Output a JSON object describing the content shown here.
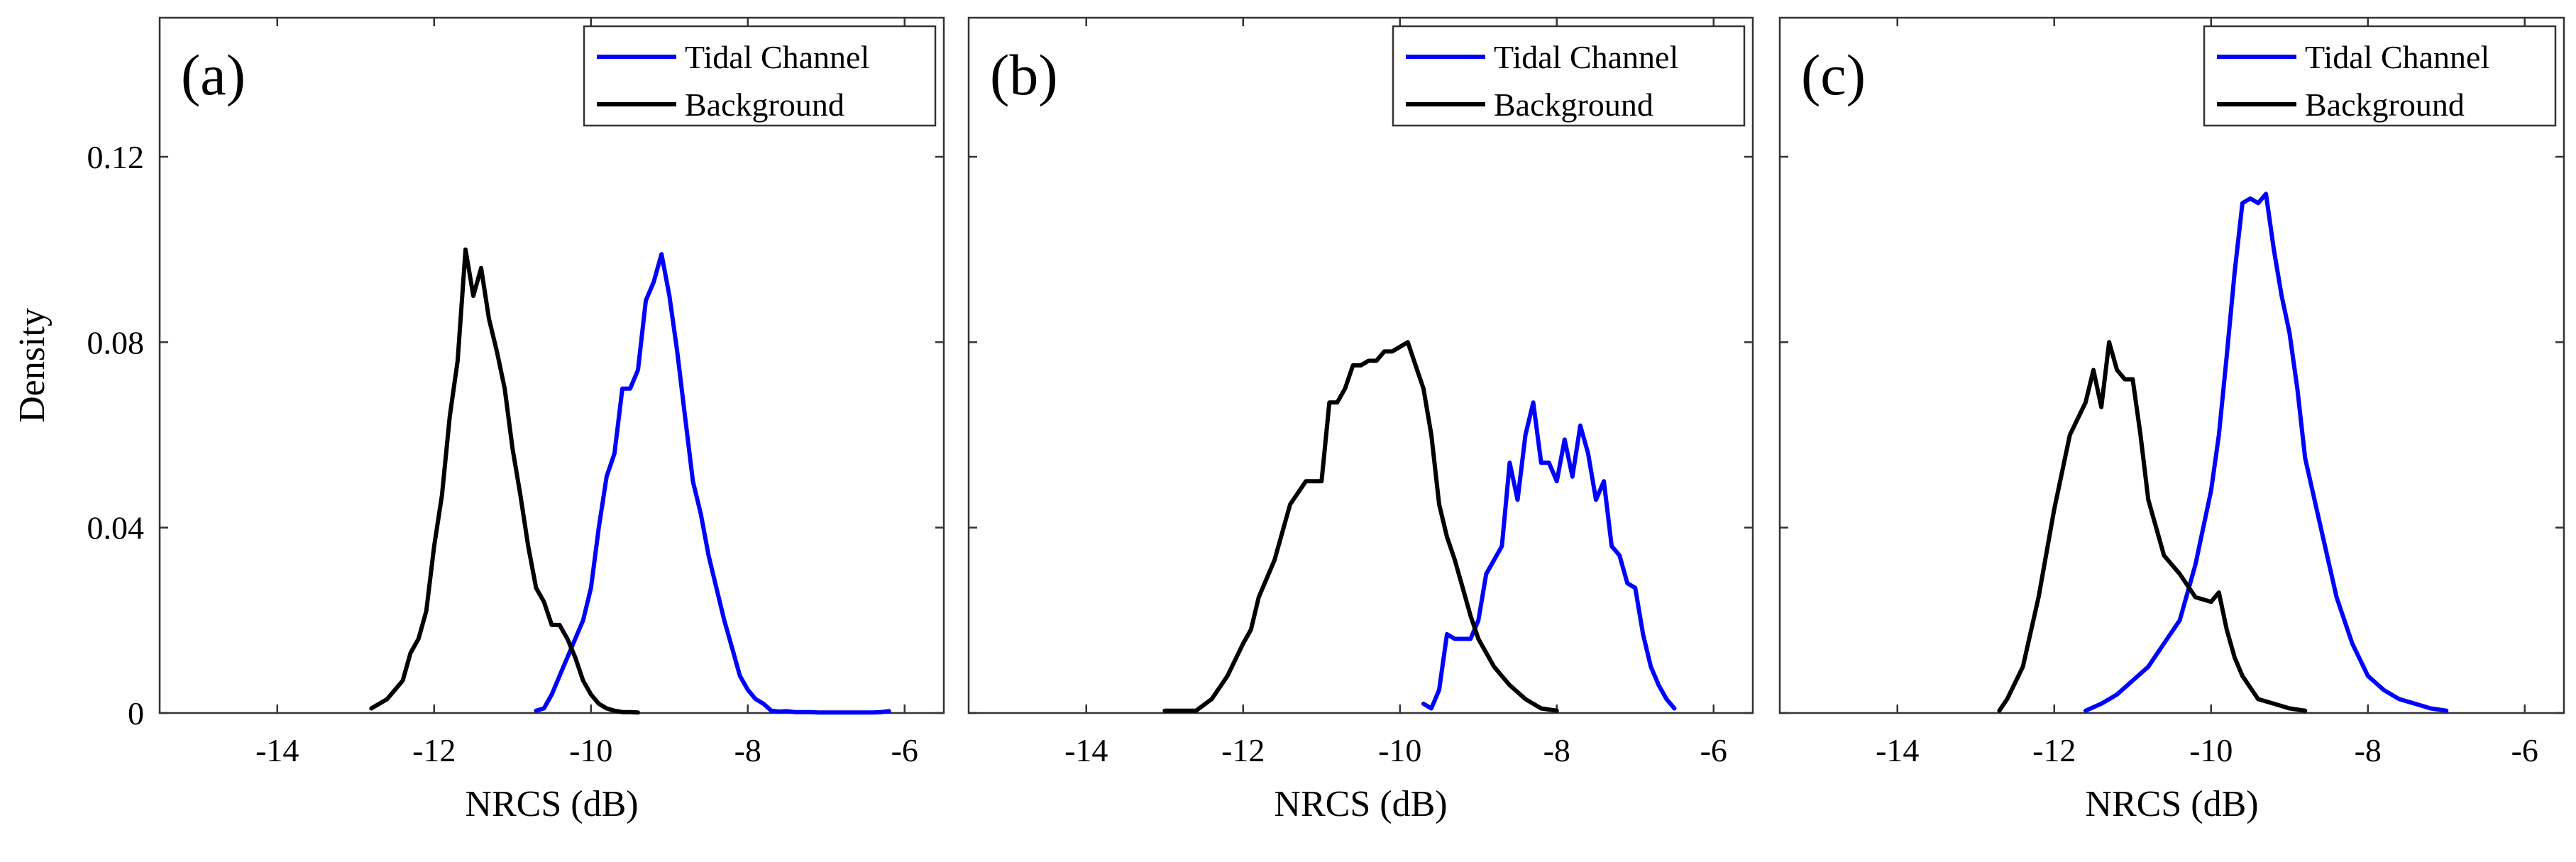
{
  "chart_data": [
    {
      "type": "line",
      "panel_label": "(a)",
      "xlabel": "NRCS (dB)",
      "ylabel": "Density",
      "xlim": [
        -15.5,
        -5.5
      ],
      "ylim": [
        0,
        0.15
      ],
      "xticks": [
        -14,
        -12,
        -10,
        -8,
        -6
      ],
      "yticks": [
        0,
        0.04,
        0.08,
        0.12
      ],
      "xtick_labels": [
        "-14",
        "-12",
        "-10",
        "-8",
        "-6"
      ],
      "ytick_labels": [
        "0",
        "0.04",
        "0.08",
        "0.12"
      ],
      "legend": {
        "position": "top-right",
        "entries": [
          "Tidal Channel",
          "Background"
        ]
      },
      "series": [
        {
          "name": "Tidal Channel",
          "color": "#0000ff",
          "x": [
            -10.7,
            -10.6,
            -10.5,
            -10.4,
            -10.3,
            -10.2,
            -10.1,
            -10.0,
            -9.9,
            -9.8,
            -9.7,
            -9.6,
            -9.5,
            -9.4,
            -9.3,
            -9.2,
            -9.1,
            -9.0,
            -8.9,
            -8.8,
            -8.7,
            -8.6,
            -8.5,
            -8.4,
            -8.3,
            -8.2,
            -8.1,
            -8.0,
            -7.9,
            -7.8,
            -7.7,
            -7.6,
            -7.5,
            -7.4,
            -7.3,
            -7.2,
            -7.1,
            -7.0,
            -6.9,
            -6.8,
            -6.7,
            -6.6,
            -6.5,
            -6.4,
            -6.3,
            -6.2
          ],
          "values": [
            0.0005,
            0.001,
            0.004,
            0.008,
            0.012,
            0.016,
            0.02,
            0.027,
            0.04,
            0.051,
            0.056,
            0.07,
            0.07,
            0.074,
            0.089,
            0.093,
            0.099,
            0.09,
            0.078,
            0.064,
            0.05,
            0.043,
            0.034,
            0.027,
            0.02,
            0.014,
            0.008,
            0.005,
            0.003,
            0.002,
            0.0005,
            0.0003,
            0.0004,
            0.0002,
            0.0002,
            0.0002,
            0.0001,
            0.0001,
            0.0001,
            0.0001,
            0.0001,
            0.0001,
            0.0001,
            0.0001,
            0.0002,
            0.0004
          ]
        },
        {
          "name": "Background",
          "color": "#000000",
          "x": [
            -12.8,
            -12.6,
            -12.4,
            -12.3,
            -12.2,
            -12.1,
            -12.0,
            -11.9,
            -11.8,
            -11.7,
            -11.6,
            -11.5,
            -11.4,
            -11.3,
            -11.2,
            -11.1,
            -11.0,
            -10.9,
            -10.8,
            -10.7,
            -10.6,
            -10.5,
            -10.4,
            -10.3,
            -10.2,
            -10.1,
            -10.0,
            -9.9,
            -9.8,
            -9.7,
            -9.6,
            -9.5,
            -9.4
          ],
          "values": [
            0.001,
            0.003,
            0.007,
            0.013,
            0.016,
            0.022,
            0.036,
            0.047,
            0.064,
            0.076,
            0.1,
            0.09,
            0.096,
            0.085,
            0.078,
            0.07,
            0.057,
            0.047,
            0.036,
            0.027,
            0.024,
            0.019,
            0.019,
            0.016,
            0.012,
            0.007,
            0.004,
            0.002,
            0.001,
            0.0005,
            0.0002,
            0.0002,
            0.0001
          ]
        }
      ]
    },
    {
      "type": "line",
      "panel_label": "(b)",
      "xlabel": "NRCS (dB)",
      "ylabel": "",
      "xlim": [
        -15.5,
        -5.5
      ],
      "ylim": [
        0,
        0.15
      ],
      "xticks": [
        -14,
        -12,
        -10,
        -8,
        -6
      ],
      "xtick_labels": [
        "-14",
        "-12",
        "-10",
        "-8",
        "-6"
      ],
      "legend": {
        "position": "top-right",
        "entries": [
          "Tidal Channel",
          "Background"
        ]
      },
      "series": [
        {
          "name": "Tidal Channel",
          "color": "#0000ff",
          "x": [
            -9.7,
            -9.6,
            -9.5,
            -9.4,
            -9.3,
            -9.2,
            -9.1,
            -9.0,
            -8.9,
            -8.8,
            -8.7,
            -8.6,
            -8.5,
            -8.4,
            -8.3,
            -8.2,
            -8.1,
            -8.0,
            -7.9,
            -7.8,
            -7.7,
            -7.6,
            -7.5,
            -7.4,
            -7.3,
            -7.2,
            -7.1,
            -7.0,
            -6.9,
            -6.8,
            -6.7,
            -6.6,
            -6.5
          ],
          "values": [
            0.002,
            0.001,
            0.005,
            0.017,
            0.016,
            0.016,
            0.016,
            0.02,
            0.03,
            0.033,
            0.036,
            0.054,
            0.046,
            0.06,
            0.067,
            0.054,
            0.054,
            0.05,
            0.059,
            0.051,
            0.062,
            0.056,
            0.046,
            0.05,
            0.036,
            0.034,
            0.028,
            0.027,
            0.017,
            0.01,
            0.006,
            0.003,
            0.001
          ]
        },
        {
          "name": "Background",
          "color": "#000000",
          "x": [
            -13.0,
            -12.8,
            -12.6,
            -12.4,
            -12.2,
            -12.0,
            -11.9,
            -11.8,
            -11.6,
            -11.4,
            -11.2,
            -11.0,
            -10.9,
            -10.8,
            -10.7,
            -10.6,
            -10.5,
            -10.4,
            -10.3,
            -10.2,
            -10.1,
            -10.0,
            -9.9,
            -9.8,
            -9.7,
            -9.6,
            -9.5,
            -9.4,
            -9.3,
            -9.2,
            -9.1,
            -9.0,
            -8.8,
            -8.6,
            -8.4,
            -8.2,
            -8.0
          ],
          "values": [
            0.0005,
            0.0005,
            0.0005,
            0.003,
            0.008,
            0.015,
            0.018,
            0.025,
            0.033,
            0.045,
            0.05,
            0.05,
            0.067,
            0.067,
            0.07,
            0.075,
            0.075,
            0.076,
            0.076,
            0.078,
            0.078,
            0.079,
            0.08,
            0.075,
            0.07,
            0.06,
            0.045,
            0.038,
            0.033,
            0.027,
            0.021,
            0.016,
            0.01,
            0.006,
            0.003,
            0.001,
            0.0005
          ]
        }
      ]
    },
    {
      "type": "line",
      "panel_label": "(c)",
      "xlabel": "NRCS (dB)",
      "ylabel": "",
      "xlim": [
        -15.5,
        -5.5
      ],
      "ylim": [
        0,
        0.15
      ],
      "xticks": [
        -14,
        -12,
        -10,
        -8,
        -6
      ],
      "xtick_labels": [
        "-14",
        "-12",
        "-10",
        "-8",
        "-6"
      ],
      "legend": {
        "position": "top-right",
        "entries": [
          "Tidal Channel",
          "Background"
        ]
      },
      "series": [
        {
          "name": "Tidal Channel",
          "color": "#0000ff",
          "x": [
            -11.6,
            -11.4,
            -11.2,
            -11.0,
            -10.8,
            -10.6,
            -10.4,
            -10.2,
            -10.0,
            -9.9,
            -9.8,
            -9.7,
            -9.6,
            -9.5,
            -9.4,
            -9.3,
            -9.2,
            -9.1,
            -9.0,
            -8.9,
            -8.8,
            -8.6,
            -8.4,
            -8.2,
            -8.0,
            -7.8,
            -7.6,
            -7.4,
            -7.2,
            -7.0
          ],
          "values": [
            0.0005,
            0.002,
            0.004,
            0.007,
            0.01,
            0.015,
            0.02,
            0.032,
            0.048,
            0.06,
            0.077,
            0.095,
            0.11,
            0.111,
            0.11,
            0.112,
            0.1,
            0.09,
            0.082,
            0.07,
            0.055,
            0.04,
            0.025,
            0.015,
            0.008,
            0.005,
            0.003,
            0.002,
            0.001,
            0.0005
          ]
        },
        {
          "name": "Background",
          "color": "#000000",
          "x": [
            -12.7,
            -12.6,
            -12.4,
            -12.2,
            -12.0,
            -11.8,
            -11.6,
            -11.5,
            -11.4,
            -11.3,
            -11.2,
            -11.1,
            -11.0,
            -10.9,
            -10.8,
            -10.7,
            -10.6,
            -10.4,
            -10.2,
            -10.0,
            -9.9,
            -9.8,
            -9.7,
            -9.6,
            -9.4,
            -9.2,
            -9.0,
            -8.8
          ],
          "values": [
            0.0005,
            0.003,
            0.01,
            0.025,
            0.044,
            0.06,
            0.067,
            0.074,
            0.066,
            0.08,
            0.074,
            0.072,
            0.072,
            0.06,
            0.046,
            0.04,
            0.034,
            0.03,
            0.025,
            0.024,
            0.026,
            0.018,
            0.012,
            0.008,
            0.003,
            0.002,
            0.001,
            0.0005
          ]
        }
      ]
    }
  ]
}
